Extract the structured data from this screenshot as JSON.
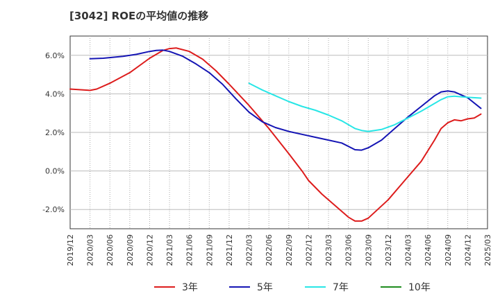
{
  "chart_data": {
    "type": "line",
    "title": "[3042]  ROEの平均値の推移",
    "xlabel": "",
    "ylabel": "",
    "ylim": [
      -3.0,
      7.0
    ],
    "yticks": [
      {
        "value": 6.0,
        "label": "6.0%"
      },
      {
        "value": 4.0,
        "label": "4.0%"
      },
      {
        "value": 2.0,
        "label": "2.0%"
      },
      {
        "value": 0.0,
        "label": "0.0%"
      },
      {
        "value": -2.0,
        "label": "-2.0%"
      }
    ],
    "xlim": [
      0,
      63
    ],
    "xticks": [
      {
        "value": 0,
        "label": "2019/12"
      },
      {
        "value": 3,
        "label": "2020/03"
      },
      {
        "value": 6,
        "label": "2020/06"
      },
      {
        "value": 9,
        "label": "2020/09"
      },
      {
        "value": 12,
        "label": "2020/12"
      },
      {
        "value": 15,
        "label": "2021/03"
      },
      {
        "value": 18,
        "label": "2021/06"
      },
      {
        "value": 21,
        "label": "2021/09"
      },
      {
        "value": 24,
        "label": "2021/12"
      },
      {
        "value": 27,
        "label": "2022/03"
      },
      {
        "value": 30,
        "label": "2022/06"
      },
      {
        "value": 33,
        "label": "2022/09"
      },
      {
        "value": 36,
        "label": "2022/12"
      },
      {
        "value": 39,
        "label": "2023/03"
      },
      {
        "value": 42,
        "label": "2023/06"
      },
      {
        "value": 45,
        "label": "2023/09"
      },
      {
        "value": 48,
        "label": "2023/12"
      },
      {
        "value": 51,
        "label": "2024/03"
      },
      {
        "value": 54,
        "label": "2024/06"
      },
      {
        "value": 57,
        "label": "2024/09"
      },
      {
        "value": 60,
        "label": "2024/12"
      },
      {
        "value": 63,
        "label": "2025/03"
      }
    ],
    "series": [
      {
        "name": "3年",
        "color": "#dd1c1c",
        "points": [
          [
            0,
            4.25
          ],
          [
            3,
            4.18
          ],
          [
            4,
            4.25
          ],
          [
            6,
            4.55
          ],
          [
            9,
            5.1
          ],
          [
            12,
            5.85
          ],
          [
            14,
            6.25
          ],
          [
            15,
            6.35
          ],
          [
            16,
            6.38
          ],
          [
            18,
            6.2
          ],
          [
            20,
            5.8
          ],
          [
            22,
            5.2
          ],
          [
            24,
            4.5
          ],
          [
            27,
            3.4
          ],
          [
            30,
            2.2
          ],
          [
            33,
            0.9
          ],
          [
            35,
            0.0
          ],
          [
            36,
            -0.5
          ],
          [
            38,
            -1.2
          ],
          [
            40,
            -1.8
          ],
          [
            42,
            -2.4
          ],
          [
            43,
            -2.6
          ],
          [
            44,
            -2.6
          ],
          [
            45,
            -2.45
          ],
          [
            48,
            -1.5
          ],
          [
            51,
            -0.3
          ],
          [
            53,
            0.5
          ],
          [
            55,
            1.6
          ],
          [
            56,
            2.2
          ],
          [
            57,
            2.5
          ],
          [
            58,
            2.65
          ],
          [
            59,
            2.6
          ],
          [
            60,
            2.7
          ],
          [
            61,
            2.75
          ],
          [
            62,
            2.95
          ]
        ]
      },
      {
        "name": "5年",
        "color": "#1414b4",
        "points": [
          [
            3,
            5.82
          ],
          [
            5,
            5.85
          ],
          [
            8,
            5.95
          ],
          [
            10,
            6.05
          ],
          [
            12,
            6.2
          ],
          [
            13,
            6.25
          ],
          [
            14,
            6.27
          ],
          [
            15,
            6.2
          ],
          [
            17,
            5.95
          ],
          [
            19,
            5.55
          ],
          [
            21,
            5.1
          ],
          [
            23,
            4.5
          ],
          [
            25,
            3.75
          ],
          [
            27,
            3.05
          ],
          [
            29,
            2.55
          ],
          [
            31,
            2.25
          ],
          [
            33,
            2.05
          ],
          [
            35,
            1.9
          ],
          [
            37,
            1.75
          ],
          [
            39,
            1.6
          ],
          [
            41,
            1.45
          ],
          [
            43,
            1.1
          ],
          [
            44,
            1.08
          ],
          [
            45,
            1.2
          ],
          [
            47,
            1.6
          ],
          [
            49,
            2.2
          ],
          [
            51,
            2.8
          ],
          [
            53,
            3.35
          ],
          [
            55,
            3.9
          ],
          [
            56,
            4.1
          ],
          [
            57,
            4.15
          ],
          [
            58,
            4.1
          ],
          [
            59,
            3.95
          ],
          [
            60,
            3.8
          ],
          [
            62,
            3.25
          ]
        ]
      },
      {
        "name": "7年",
        "color": "#28e6e6",
        "points": [
          [
            27,
            4.55
          ],
          [
            29,
            4.2
          ],
          [
            31,
            3.9
          ],
          [
            33,
            3.6
          ],
          [
            35,
            3.35
          ],
          [
            37,
            3.15
          ],
          [
            39,
            2.9
          ],
          [
            41,
            2.6
          ],
          [
            43,
            2.2
          ],
          [
            44,
            2.1
          ],
          [
            45,
            2.05
          ],
          [
            47,
            2.15
          ],
          [
            49,
            2.4
          ],
          [
            51,
            2.75
          ],
          [
            53,
            3.1
          ],
          [
            55,
            3.5
          ],
          [
            56,
            3.7
          ],
          [
            57,
            3.85
          ],
          [
            58,
            3.88
          ],
          [
            59,
            3.85
          ],
          [
            60,
            3.82
          ],
          [
            62,
            3.78
          ]
        ]
      },
      {
        "name": "10年",
        "color": "#1e8c1e",
        "points": []
      }
    ]
  }
}
